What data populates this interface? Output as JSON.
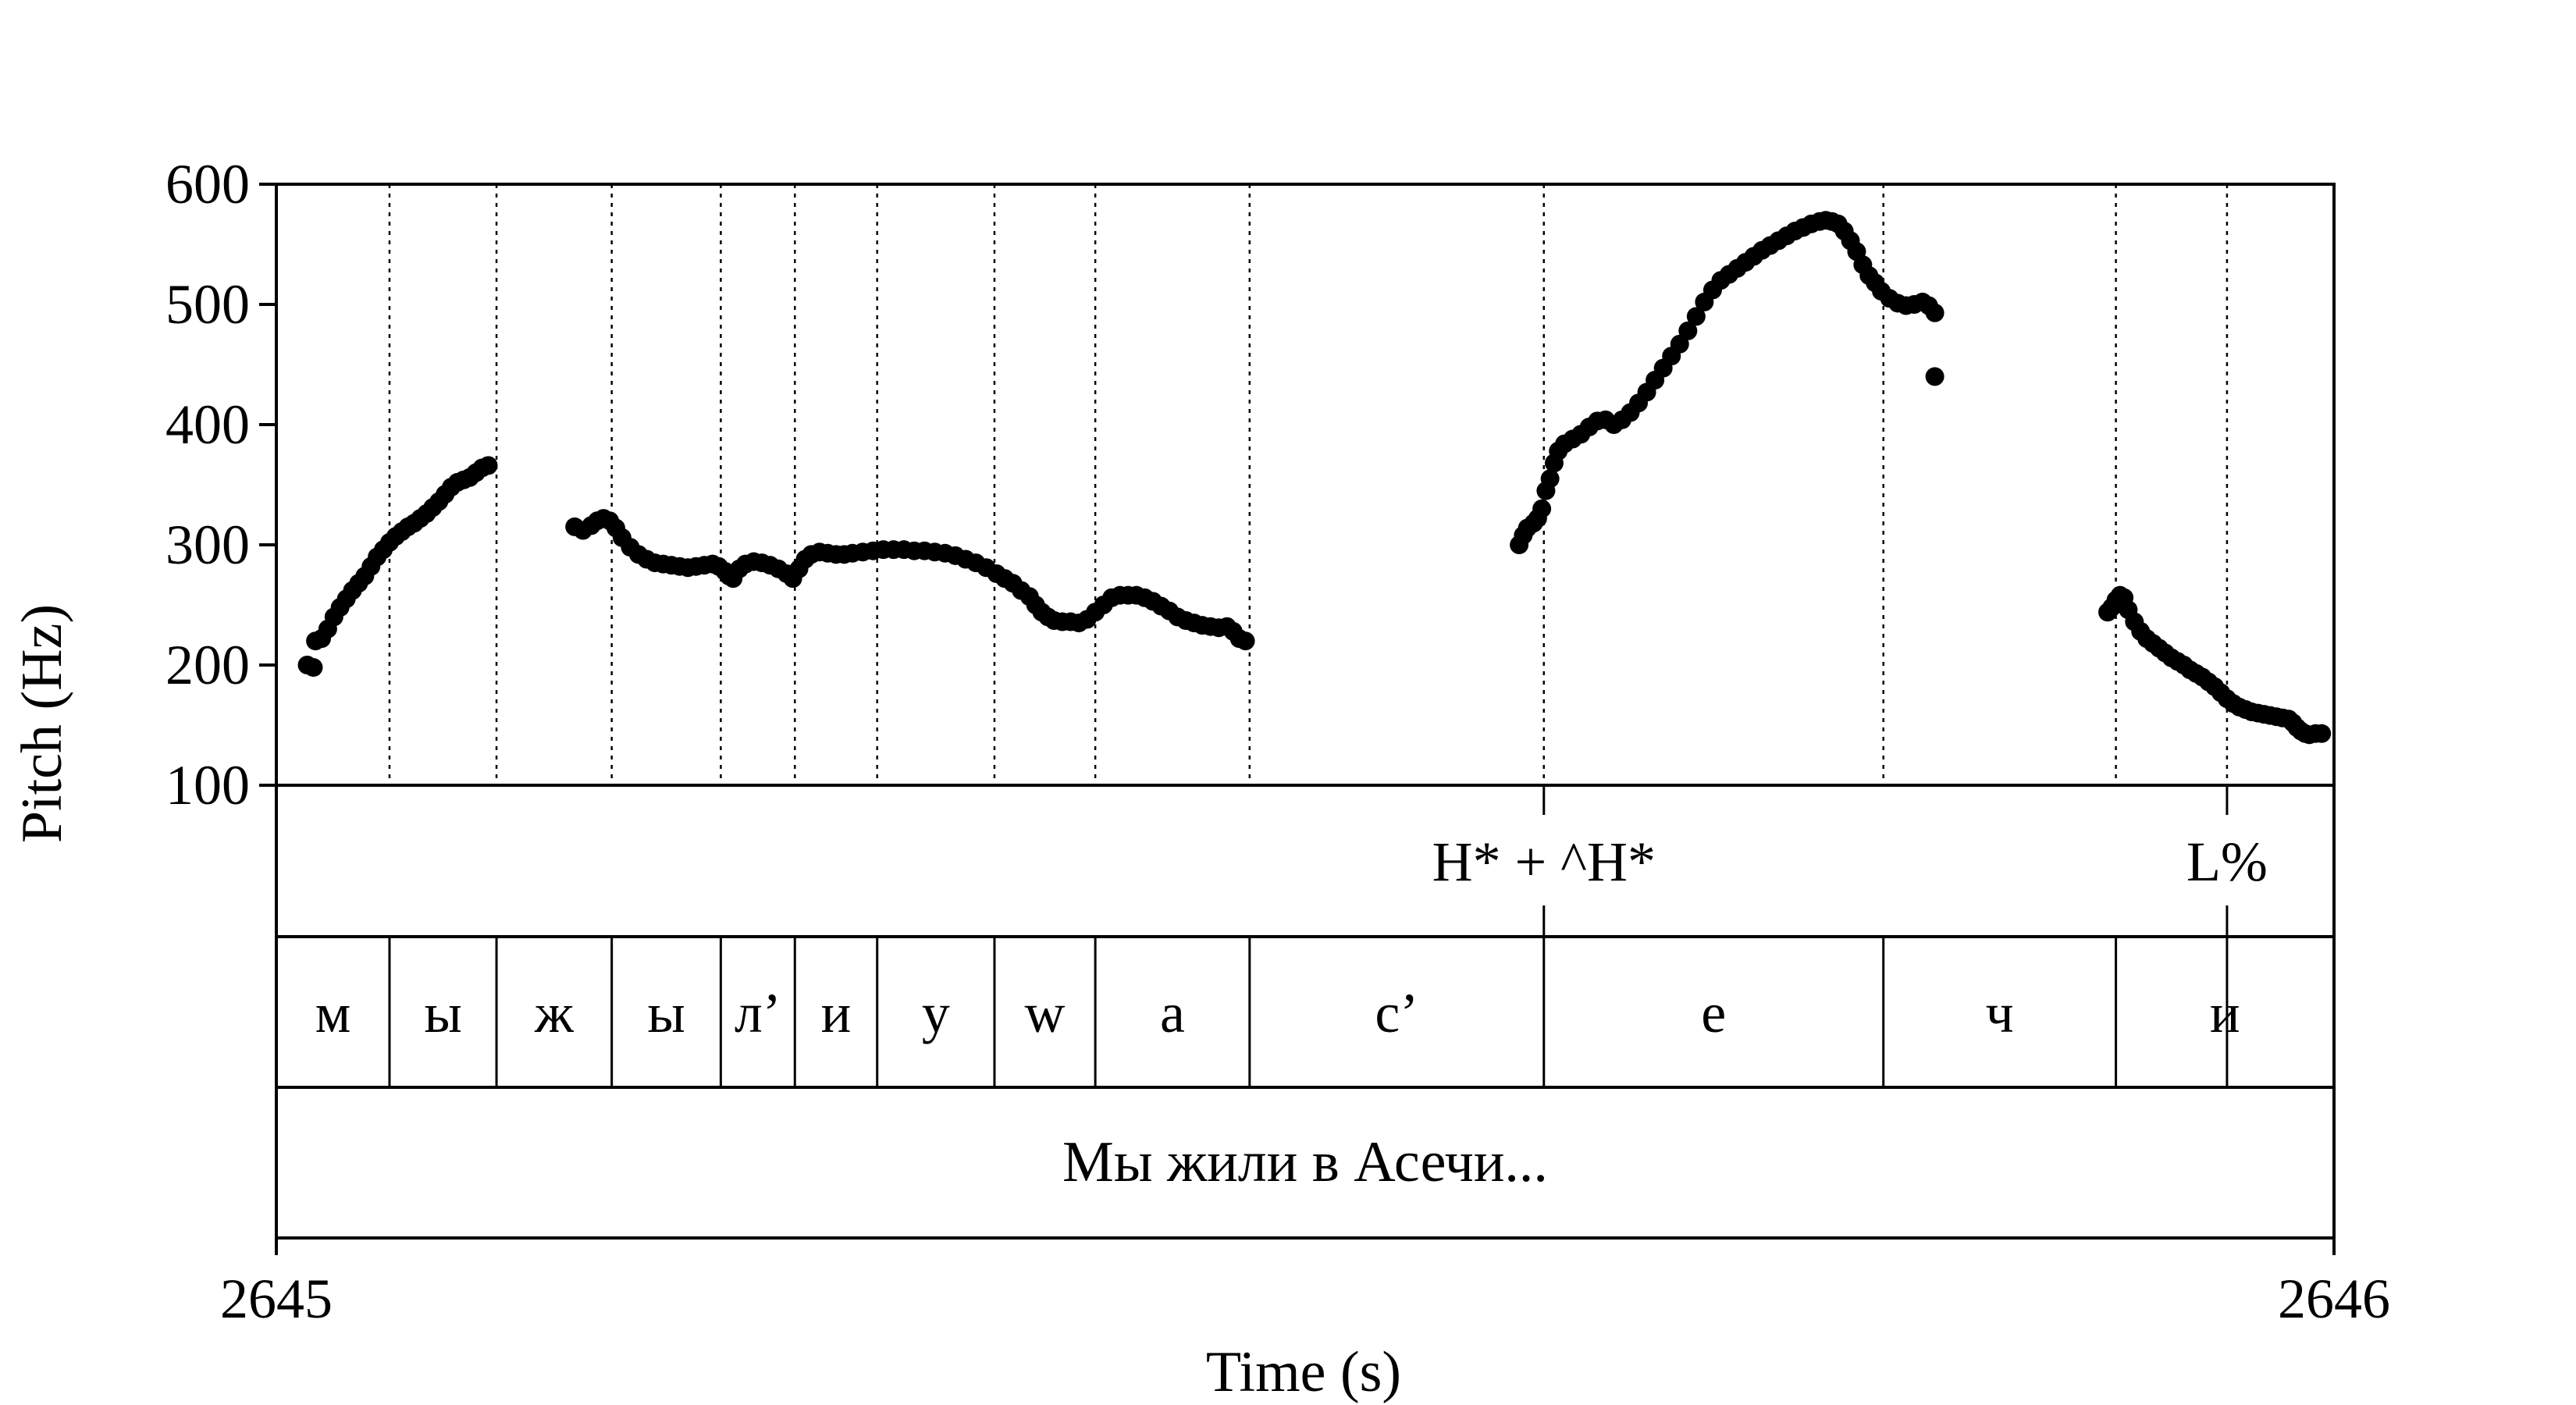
{
  "chart_data": {
    "type": "scatter",
    "title": "",
    "xlabel": "Time (s)",
    "ylabel": "Pitch (Hz)",
    "xlim": [
      2645,
      2646
    ],
    "ylim": [
      100,
      600
    ],
    "x_ticks": [
      "2645",
      "2646"
    ],
    "y_ticks": [
      "600",
      "500",
      "400",
      "300",
      "200",
      "100"
    ],
    "y_tick_values": [
      600,
      500,
      400,
      300,
      200,
      100
    ],
    "grid": false,
    "boundaries": [
      2645.055,
      2645.107,
      2645.163,
      2645.216,
      2645.252,
      2645.292,
      2645.349,
      2645.398,
      2645.473,
      2645.616,
      2645.781,
      2645.894,
      2645.948
    ],
    "tones": [
      {
        "label": "H* + ^H*",
        "time": 2645.616
      },
      {
        "label": "L%",
        "time": 2645.948
      }
    ],
    "segments": [
      {
        "label": "м",
        "start": 2645.0,
        "end": 2645.055
      },
      {
        "label": "ы",
        "start": 2645.055,
        "end": 2645.107
      },
      {
        "label": "ж",
        "start": 2645.107,
        "end": 2645.163
      },
      {
        "label": "ы",
        "start": 2645.163,
        "end": 2645.216
      },
      {
        "label": "л’",
        "start": 2645.216,
        "end": 2645.252
      },
      {
        "label": "и",
        "start": 2645.252,
        "end": 2645.292
      },
      {
        "label": "у",
        "start": 2645.292,
        "end": 2645.349
      },
      {
        "label": "w",
        "start": 2645.349,
        "end": 2645.398
      },
      {
        "label": "а",
        "start": 2645.398,
        "end": 2645.473
      },
      {
        "label": "с’",
        "start": 2645.473,
        "end": 2645.616
      },
      {
        "label": "е",
        "start": 2645.616,
        "end": 2645.781
      },
      {
        "label": "ч",
        "start": 2645.781,
        "end": 2645.894
      },
      {
        "label": "и",
        "start": 2645.894,
        "end": 2646.0
      }
    ],
    "sentence": "Мы жили в Асечи...",
    "series": [
      {
        "points": [
          [
            2645.015,
            200
          ],
          [
            2645.018,
            198
          ],
          [
            2645.019,
            220
          ],
          [
            2645.022,
            222
          ],
          [
            2645.025,
            230
          ],
          [
            2645.028,
            240
          ],
          [
            2645.031,
            248
          ],
          [
            2645.034,
            255
          ],
          [
            2645.037,
            262
          ],
          [
            2645.04,
            268
          ],
          [
            2645.043,
            274
          ],
          [
            2645.046,
            282
          ],
          [
            2645.049,
            290
          ],
          [
            2645.052,
            296
          ],
          [
            2645.055,
            302
          ],
          [
            2645.058,
            307
          ],
          [
            2645.061,
            311
          ],
          [
            2645.064,
            315
          ],
          [
            2645.067,
            318
          ],
          [
            2645.07,
            322
          ],
          [
            2645.073,
            326
          ],
          [
            2645.076,
            331
          ],
          [
            2645.079,
            336
          ],
          [
            2645.082,
            342
          ],
          [
            2645.085,
            348
          ],
          [
            2645.088,
            352
          ],
          [
            2645.091,
            354
          ],
          [
            2645.094,
            356
          ],
          [
            2645.097,
            360
          ],
          [
            2645.1,
            364
          ],
          [
            2645.103,
            366
          ],
          [
            2645.145,
            315
          ],
          [
            2645.149,
            312
          ],
          [
            2645.153,
            316
          ],
          [
            2645.156,
            320
          ],
          [
            2645.159,
            322
          ],
          [
            2645.162,
            320
          ],
          [
            2645.165,
            314
          ],
          [
            2645.168,
            306
          ],
          [
            2645.172,
            298
          ],
          [
            2645.176,
            292
          ],
          [
            2645.18,
            288
          ],
          [
            2645.184,
            285
          ],
          [
            2645.188,
            284
          ],
          [
            2645.192,
            283
          ],
          [
            2645.196,
            282
          ],
          [
            2645.2,
            281
          ],
          [
            2645.204,
            282
          ],
          [
            2645.208,
            283
          ],
          [
            2645.212,
            284
          ],
          [
            2645.215,
            282
          ],
          [
            2645.218,
            278
          ],
          [
            2645.22,
            274
          ],
          [
            2645.222,
            272
          ],
          [
            2645.225,
            280
          ],
          [
            2645.228,
            284
          ],
          [
            2645.232,
            286
          ],
          [
            2645.236,
            285
          ],
          [
            2645.24,
            283
          ],
          [
            2645.244,
            280
          ],
          [
            2645.248,
            276
          ],
          [
            2645.251,
            272
          ],
          [
            2645.254,
            280
          ],
          [
            2645.257,
            288
          ],
          [
            2645.26,
            292
          ],
          [
            2645.264,
            294
          ],
          [
            2645.268,
            293
          ],
          [
            2645.272,
            292
          ],
          [
            2645.276,
            292
          ],
          [
            2645.28,
            293
          ],
          [
            2645.285,
            294
          ],
          [
            2645.29,
            295
          ],
          [
            2645.295,
            296
          ],
          [
            2645.3,
            296
          ],
          [
            2645.305,
            296
          ],
          [
            2645.31,
            295
          ],
          [
            2645.315,
            295
          ],
          [
            2645.32,
            294
          ],
          [
            2645.325,
            293
          ],
          [
            2645.33,
            291
          ],
          [
            2645.335,
            288
          ],
          [
            2645.34,
            285
          ],
          [
            2645.345,
            281
          ],
          [
            2645.35,
            276
          ],
          [
            2645.354,
            272
          ],
          [
            2645.358,
            268
          ],
          [
            2645.362,
            262
          ],
          [
            2645.366,
            257
          ],
          [
            2645.369,
            250
          ],
          [
            2645.372,
            244
          ],
          [
            2645.375,
            240
          ],
          [
            2645.378,
            237
          ],
          [
            2645.382,
            236
          ],
          [
            2645.386,
            236
          ],
          [
            2645.39,
            235
          ],
          [
            2645.394,
            238
          ],
          [
            2645.398,
            244
          ],
          [
            2645.402,
            250
          ],
          [
            2645.406,
            256
          ],
          [
            2645.41,
            258
          ],
          [
            2645.414,
            258
          ],
          [
            2645.418,
            258
          ],
          [
            2645.422,
            256
          ],
          [
            2645.426,
            253
          ],
          [
            2645.43,
            249
          ],
          [
            2645.434,
            245
          ],
          [
            2645.438,
            240
          ],
          [
            2645.442,
            237
          ],
          [
            2645.446,
            235
          ],
          [
            2645.45,
            233
          ],
          [
            2645.454,
            232
          ],
          [
            2645.458,
            231
          ],
          [
            2645.462,
            232
          ],
          [
            2645.465,
            228
          ],
          [
            2645.468,
            222
          ],
          [
            2645.471,
            220
          ],
          [
            2645.604,
            300
          ],
          [
            2645.606,
            308
          ],
          [
            2645.608,
            314
          ],
          [
            2645.611,
            318
          ],
          [
            2645.613,
            322
          ],
          [
            2645.615,
            330
          ],
          [
            2645.617,
            345
          ],
          [
            2645.619,
            355
          ],
          [
            2645.621,
            368
          ],
          [
            2645.623,
            378
          ],
          [
            2645.626,
            384
          ],
          [
            2645.63,
            388
          ],
          [
            2645.634,
            392
          ],
          [
            2645.638,
            398
          ],
          [
            2645.642,
            403
          ],
          [
            2645.646,
            404
          ],
          [
            2645.65,
            400
          ],
          [
            2645.654,
            404
          ],
          [
            2645.658,
            410
          ],
          [
            2645.662,
            418
          ],
          [
            2645.666,
            427
          ],
          [
            2645.67,
            437
          ],
          [
            2645.674,
            447
          ],
          [
            2645.678,
            457
          ],
          [
            2645.682,
            467
          ],
          [
            2645.686,
            478
          ],
          [
            2645.69,
            490
          ],
          [
            2645.694,
            502
          ],
          [
            2645.698,
            512
          ],
          [
            2645.702,
            520
          ],
          [
            2645.706,
            525
          ],
          [
            2645.71,
            530
          ],
          [
            2645.714,
            535
          ],
          [
            2645.718,
            540
          ],
          [
            2645.722,
            545
          ],
          [
            2645.726,
            549
          ],
          [
            2645.73,
            553
          ],
          [
            2645.734,
            557
          ],
          [
            2645.738,
            561
          ],
          [
            2645.742,
            564
          ],
          [
            2645.746,
            567
          ],
          [
            2645.75,
            569
          ],
          [
            2645.753,
            570
          ],
          [
            2645.756,
            569
          ],
          [
            2645.759,
            567
          ],
          [
            2645.762,
            561
          ],
          [
            2645.765,
            553
          ],
          [
            2645.768,
            544
          ],
          [
            2645.771,
            533
          ],
          [
            2645.774,
            524
          ],
          [
            2645.777,
            518
          ],
          [
            2645.78,
            511
          ],
          [
            2645.784,
            505
          ],
          [
            2645.788,
            501
          ],
          [
            2645.792,
            499
          ],
          [
            2645.796,
            500
          ],
          [
            2645.8,
            502
          ],
          [
            2645.803,
            499
          ],
          [
            2645.806,
            493
          ],
          [
            2645.806,
            440
          ],
          [
            2645.89,
            244
          ],
          [
            2645.892,
            248
          ],
          [
            2645.894,
            254
          ],
          [
            2645.896,
            258
          ],
          [
            2645.898,
            256
          ],
          [
            2645.9,
            246
          ],
          [
            2645.903,
            236
          ],
          [
            2645.906,
            228
          ],
          [
            2645.909,
            222
          ],
          [
            2645.912,
            218
          ],
          [
            2645.915,
            214
          ],
          [
            2645.918,
            210
          ],
          [
            2645.921,
            206
          ],
          [
            2645.924,
            203
          ],
          [
            2645.927,
            200
          ],
          [
            2645.93,
            196
          ],
          [
            2645.933,
            193
          ],
          [
            2645.936,
            190
          ],
          [
            2645.939,
            186
          ],
          [
            2645.942,
            182
          ],
          [
            2645.945,
            177
          ],
          [
            2645.948,
            172
          ],
          [
            2645.951,
            168
          ],
          [
            2645.954,
            165
          ],
          [
            2645.957,
            163
          ],
          [
            2645.96,
            161
          ],
          [
            2645.963,
            160
          ],
          [
            2645.966,
            159
          ],
          [
            2645.969,
            158
          ],
          [
            2645.972,
            157
          ],
          [
            2645.975,
            156
          ],
          [
            2645.978,
            155
          ],
          [
            2645.98,
            152
          ],
          [
            2645.982,
            148
          ],
          [
            2645.984,
            145
          ],
          [
            2645.986,
            143
          ],
          [
            2645.988,
            142
          ],
          [
            2645.991,
            143
          ],
          [
            2645.994,
            143
          ]
        ]
      }
    ]
  }
}
